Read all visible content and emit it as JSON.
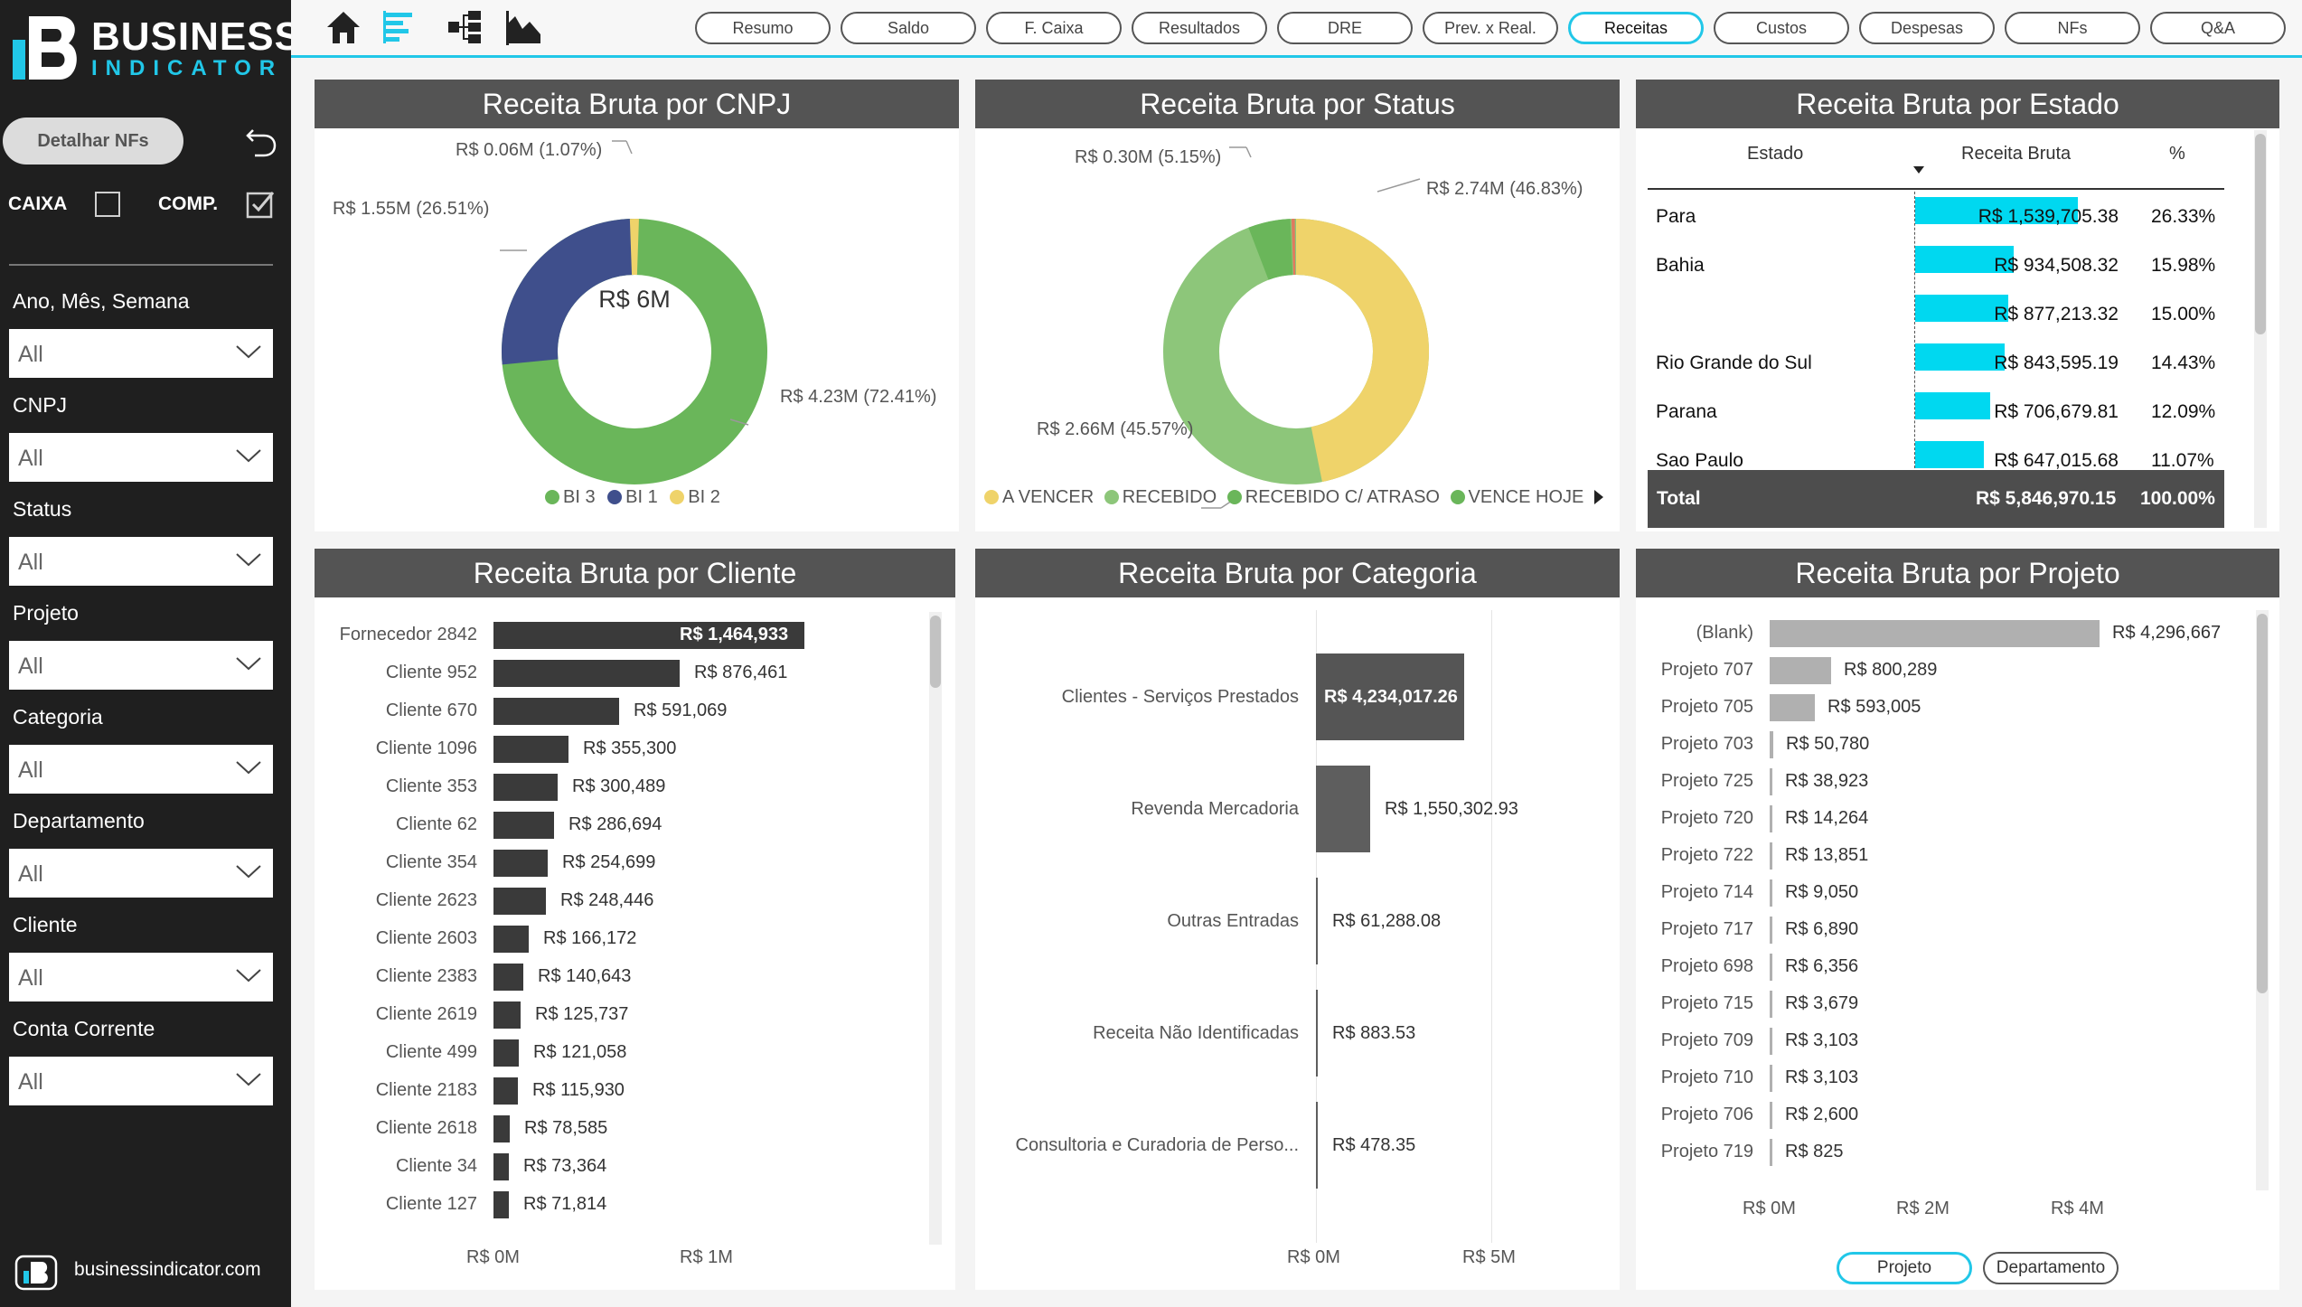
{
  "brand": {
    "line1": "BUSINESS",
    "line2": "INDICATOR",
    "footer": "businessindicator.com"
  },
  "sidebar": {
    "detail_button": "Detalhar NFs",
    "caixa_label": "CAIXA",
    "caixa_checked": false,
    "comp_label": "COMP.",
    "comp_checked": true,
    "filters": [
      {
        "label": "Ano, Mês, Semana",
        "value": "All"
      },
      {
        "label": "CNPJ",
        "value": "All"
      },
      {
        "label": "Status",
        "value": "All"
      },
      {
        "label": "Projeto",
        "value": "All"
      },
      {
        "label": "Categoria",
        "value": "All"
      },
      {
        "label": "Departamento",
        "value": "All"
      },
      {
        "label": "Cliente",
        "value": "All"
      },
      {
        "label": "Conta Corrente",
        "value": "All"
      }
    ]
  },
  "nav": {
    "tabs": [
      "Resumo",
      "Saldo",
      "F. Caixa",
      "Resultados",
      "DRE",
      "Prev. x Real.",
      "Receitas",
      "Custos",
      "Despesas",
      "NFs",
      "Q&A"
    ],
    "active": "Receitas"
  },
  "colors": {
    "accent": "#21c7e8",
    "header": "#545454",
    "green": "#6ab65a",
    "navy": "#3f4f8c",
    "yellow": "#efd36a",
    "light_green": "#8dc67a",
    "bar_dark": "#3a3a3a",
    "bar_grey": "#b0b0b0",
    "cyan_bar": "#00d8f0"
  },
  "cnpj": {
    "title": "Receita Bruta por CNPJ",
    "center": "R$ 6M",
    "labels": {
      "bi2": "R$ 0.06M (1.07%)",
      "bi1": "R$ 1.55M (26.51%)",
      "bi3": "R$ 4.23M (72.41%)"
    },
    "legend": [
      "BI 3",
      "BI 1",
      "BI 2"
    ]
  },
  "status": {
    "title": "Receita Bruta por Status",
    "labels": {
      "vence": "R$ 0.30M (5.15%)",
      "avencer": "R$ 2.74M (46.83%)",
      "recebido": "R$ 2.66M (45.57%)"
    },
    "legend": [
      "A VENCER",
      "RECEBIDO",
      "RECEBIDO C/ ATRASO",
      "VENCE HOJE"
    ]
  },
  "estado": {
    "title": "Receita Bruta por Estado",
    "columns": [
      "Estado",
      "Receita Bruta",
      "%"
    ],
    "rows": [
      {
        "estado": "Para",
        "receita": "R$ 1,539,705.38",
        "pct": "26.33%"
      },
      {
        "estado": "Bahia",
        "receita": "R$ 934,508.32",
        "pct": "15.98%"
      },
      {
        "estado": "",
        "receita": "R$ 877,213.32",
        "pct": "15.00%"
      },
      {
        "estado": "Rio Grande do Sul",
        "receita": "R$ 843,595.19",
        "pct": "14.43%"
      },
      {
        "estado": "Parana",
        "receita": "R$ 706,679.81",
        "pct": "12.09%"
      },
      {
        "estado": "Sao Paulo",
        "receita": "R$ 647,015.68",
        "pct": "11.07%"
      }
    ],
    "total": {
      "label": "Total",
      "receita": "R$ 5,846,970.15",
      "pct": "100.00%"
    }
  },
  "cliente": {
    "title": "Receita Bruta por Cliente",
    "axis": [
      "R$ 0M",
      "R$ 1M"
    ],
    "rows": [
      {
        "name": "Fornecedor 2842",
        "label": "R$ 1,464,933",
        "value": 1464933
      },
      {
        "name": "Cliente 952",
        "label": "R$ 876,461",
        "value": 876461
      },
      {
        "name": "Cliente 670",
        "label": "R$ 591,069",
        "value": 591069
      },
      {
        "name": "Cliente 1096",
        "label": "R$ 355,300",
        "value": 355300
      },
      {
        "name": "Cliente 353",
        "label": "R$ 300,489",
        "value": 300489
      },
      {
        "name": "Cliente 62",
        "label": "R$ 286,694",
        "value": 286694
      },
      {
        "name": "Cliente 354",
        "label": "R$ 254,699",
        "value": 254699
      },
      {
        "name": "Cliente 2623",
        "label": "R$ 248,446",
        "value": 248446
      },
      {
        "name": "Cliente 2603",
        "label": "R$ 166,172",
        "value": 166172
      },
      {
        "name": "Cliente 2383",
        "label": "R$ 140,643",
        "value": 140643
      },
      {
        "name": "Cliente 2619",
        "label": "R$ 125,737",
        "value": 125737
      },
      {
        "name": "Cliente 499",
        "label": "R$ 121,058",
        "value": 121058
      },
      {
        "name": "Cliente 2183",
        "label": "R$ 115,930",
        "value": 115930
      },
      {
        "name": "Cliente 2618",
        "label": "R$ 78,585",
        "value": 78585
      },
      {
        "name": "Cliente 34",
        "label": "R$ 73,364",
        "value": 73364
      },
      {
        "name": "Cliente 127",
        "label": "R$ 71,814",
        "value": 71814
      }
    ]
  },
  "categoria": {
    "title": "Receita Bruta por Categoria",
    "axis": [
      "R$ 0M",
      "R$ 5M"
    ],
    "rows": [
      {
        "name": "Clientes - Serviços Prestados",
        "label": "R$ 4,234,017.26",
        "value": 4234017.26
      },
      {
        "name": "Revenda Mercadoria",
        "label": "R$ 1,550,302.93",
        "value": 1550302.93
      },
      {
        "name": "Outras Entradas",
        "label": "R$ 61,288.08",
        "value": 61288.08
      },
      {
        "name": "Receita Não Identificadas",
        "label": "R$ 883.53",
        "value": 883.53
      },
      {
        "name": "Consultoria e Curadoria de Perso...",
        "label": "R$ 478.35",
        "value": 478.35
      }
    ]
  },
  "projeto": {
    "title": "Receita Bruta por Projeto",
    "axis": [
      "R$ 0M",
      "R$ 2M",
      "R$ 4M"
    ],
    "buttons": [
      "Projeto",
      "Departamento"
    ],
    "active_button": "Projeto",
    "rows": [
      {
        "name": "(Blank)",
        "label": "R$ 4,296,667",
        "value": 4296667
      },
      {
        "name": "Projeto 707",
        "label": "R$ 800,289",
        "value": 800289
      },
      {
        "name": "Projeto 705",
        "label": "R$ 593,005",
        "value": 593005
      },
      {
        "name": "Projeto 703",
        "label": "R$ 50,780",
        "value": 50780
      },
      {
        "name": "Projeto 725",
        "label": "R$ 38,923",
        "value": 38923
      },
      {
        "name": "Projeto 720",
        "label": "R$ 14,264",
        "value": 14264
      },
      {
        "name": "Projeto 722",
        "label": "R$ 13,851",
        "value": 13851
      },
      {
        "name": "Projeto 714",
        "label": "R$ 9,050",
        "value": 9050
      },
      {
        "name": "Projeto 717",
        "label": "R$ 6,890",
        "value": 6890
      },
      {
        "name": "Projeto 698",
        "label": "R$ 6,356",
        "value": 6356
      },
      {
        "name": "Projeto 715",
        "label": "R$ 3,679",
        "value": 3679
      },
      {
        "name": "Projeto 709",
        "label": "R$ 3,103",
        "value": 3103
      },
      {
        "name": "Projeto 710",
        "label": "R$ 3,103",
        "value": 3103
      },
      {
        "name": "Projeto 706",
        "label": "R$ 2,600",
        "value": 2600
      },
      {
        "name": "Projeto 719",
        "label": "R$ 825",
        "value": 825
      }
    ]
  },
  "chart_data": [
    {
      "type": "pie",
      "title": "Receita Bruta por CNPJ",
      "categories": [
        "BI 3",
        "BI 1",
        "BI 2"
      ],
      "values": [
        4.23,
        1.55,
        0.06
      ]
    },
    {
      "type": "pie",
      "title": "Receita Bruta por Status",
      "categories": [
        "A VENCER",
        "RECEBIDO",
        "RECEBIDO C/ ATRASO",
        "VENCE HOJE"
      ],
      "values": [
        2.74,
        2.66,
        0.3,
        0.01
      ]
    },
    {
      "type": "table",
      "title": "Receita Bruta por Estado",
      "categories": [
        "Para",
        "Bahia",
        "",
        "Rio Grande do Sul",
        "Parana",
        "Sao Paulo"
      ],
      "values": [
        1539705.38,
        934508.32,
        877213.32,
        843595.19,
        706679.81,
        647015.68
      ]
    },
    {
      "type": "bar",
      "title": "Receita Bruta por Cliente",
      "categories": [
        "Fornecedor 2842",
        "Cliente 952",
        "Cliente 670",
        "Cliente 1096",
        "Cliente 353",
        "Cliente 62",
        "Cliente 354",
        "Cliente 2623",
        "Cliente 2603",
        "Cliente 2383",
        "Cliente 2619",
        "Cliente 499",
        "Cliente 2183",
        "Cliente 2618",
        "Cliente 34",
        "Cliente 127"
      ],
      "values": [
        1464933,
        876461,
        591069,
        355300,
        300489,
        286694,
        254699,
        248446,
        166172,
        140643,
        125737,
        121058,
        115930,
        78585,
        73364,
        71814
      ]
    },
    {
      "type": "bar",
      "title": "Receita Bruta por Categoria",
      "categories": [
        "Clientes - Serviços Prestados",
        "Revenda Mercadoria",
        "Outras Entradas",
        "Receita Não Identificadas",
        "Consultoria e Curadoria de Perso..."
      ],
      "values": [
        4234017.26,
        1550302.93,
        61288.08,
        883.53,
        478.35
      ],
      "xlim": [
        0,
        5000000
      ]
    },
    {
      "type": "bar",
      "title": "Receita Bruta por Projeto",
      "categories": [
        "(Blank)",
        "Projeto 707",
        "Projeto 705",
        "Projeto 703",
        "Projeto 725",
        "Projeto 720",
        "Projeto 722",
        "Projeto 714",
        "Projeto 717",
        "Projeto 698",
        "Projeto 715",
        "Projeto 709",
        "Projeto 710",
        "Projeto 706",
        "Projeto 719"
      ],
      "values": [
        4296667,
        800289,
        593005,
        50780,
        38923,
        14264,
        13851,
        9050,
        6890,
        6356,
        3679,
        3103,
        3103,
        2600,
        825
      ]
    }
  ]
}
